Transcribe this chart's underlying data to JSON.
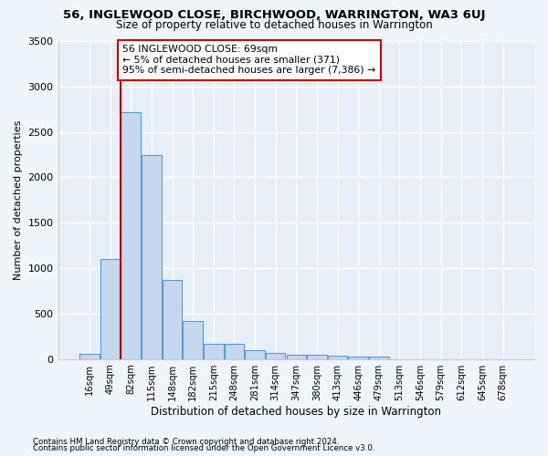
{
  "title": "56, INGLEWOOD CLOSE, BIRCHWOOD, WARRINGTON, WA3 6UJ",
  "subtitle": "Size of property relative to detached houses in Warrington",
  "xlabel": "Distribution of detached houses by size in Warrington",
  "ylabel": "Number of detached properties",
  "bar_labels": [
    "16sqm",
    "49sqm",
    "82sqm",
    "115sqm",
    "148sqm",
    "182sqm",
    "215sqm",
    "248sqm",
    "281sqm",
    "314sqm",
    "347sqm",
    "380sqm",
    "413sqm",
    "446sqm",
    "479sqm",
    "513sqm",
    "546sqm",
    "579sqm",
    "612sqm",
    "645sqm",
    "678sqm"
  ],
  "bar_values": [
    55,
    1100,
    2720,
    2250,
    870,
    420,
    170,
    165,
    95,
    65,
    50,
    50,
    35,
    30,
    30,
    0,
    0,
    0,
    0,
    0,
    0
  ],
  "bar_color": "#c5d8f0",
  "bar_edge_color": "#5b9bd5",
  "background_color": "#e8eef7",
  "grid_color": "#ffffff",
  "annotation_text": "56 INGLEWOOD CLOSE: 69sqm\n← 5% of detached houses are smaller (371)\n95% of semi-detached houses are larger (7,386) →",
  "vline_x": 1.5,
  "vline_color": "#cc0000",
  "annotation_box_color": "#ffffff",
  "annotation_box_edge": "#cc0000",
  "ylim": [
    0,
    3500
  ],
  "yticks": [
    0,
    500,
    1000,
    1500,
    2000,
    2500,
    3000,
    3500
  ],
  "footer1": "Contains HM Land Registry data © Crown copyright and database right 2024.",
  "footer2": "Contains public sector information licensed under the Open Government Licence v3.0."
}
